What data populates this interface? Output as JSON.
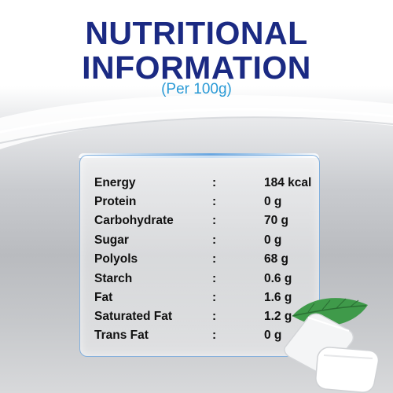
{
  "header": {
    "title_line1": "NUTRITIONAL",
    "title_line2": "INFORMATION",
    "subtitle": "(Per 100g)"
  },
  "colors": {
    "title": "#1b2a83",
    "subtitle": "#2a9ad6",
    "card_border": "#78aadc",
    "leaf": "#3f9a4a"
  },
  "nutrition": {
    "separator": ":",
    "rows": [
      {
        "name": "Energy",
        "value": "184 kcal"
      },
      {
        "name": "Protein",
        "value": "0 g"
      },
      {
        "name": "Carbohydrate",
        "value": "70 g"
      },
      {
        "name": "Sugar",
        "value": "0 g"
      },
      {
        "name": "Polyols",
        "value": "68 g"
      },
      {
        "name": "Starch",
        "value": "0.6 g"
      },
      {
        "name": " Fat",
        "value": "1.6 g"
      },
      {
        "name": "Saturated Fat",
        "value": "1.2 g"
      },
      {
        "name": "Trans Fat",
        "value": "0 g"
      }
    ]
  },
  "icons": [
    "mint-leaf-icon",
    "gum-pellet-icon"
  ]
}
